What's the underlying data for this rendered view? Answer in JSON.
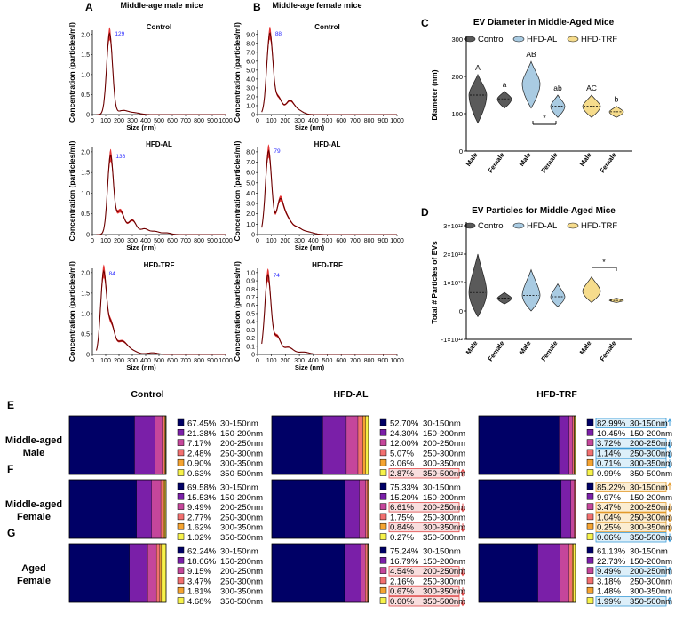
{
  "figure": {
    "panel_letters": [
      "A",
      "B",
      "C",
      "D",
      "E",
      "F",
      "G"
    ],
    "nta": {
      "A_title": "Middle-age male mice",
      "B_title": "Middle-age female mice",
      "ylabel": "Concentration (particles/ml)",
      "xlabel": "Size (nm)",
      "xticks": [
        "0",
        "100",
        "200",
        "300",
        "400",
        "500",
        "600",
        "700",
        "800",
        "900",
        "1000"
      ],
      "A_panels": [
        {
          "label": "Control",
          "peak": "129",
          "yticks": [
            "0",
            "0.5",
            "1.0",
            "1.5",
            "2.0"
          ]
        },
        {
          "label": "HFD-AL",
          "peak": "136",
          "yticks": [
            "0",
            "0.5",
            "1.0",
            "1.5",
            "2.0"
          ]
        },
        {
          "label": "HFD-TRF",
          "peak": "84",
          "yticks": [
            "0",
            "0.5",
            "1.0",
            "1.5",
            "2.0"
          ]
        }
      ],
      "B_panels": [
        {
          "label": "Control",
          "peak": "88",
          "yticks": [
            "0",
            "1.0",
            "2.0",
            "3.0",
            "4.0",
            "5.0",
            "6.0",
            "7.0",
            "8.0",
            "9.0"
          ]
        },
        {
          "label": "HFD-AL",
          "peak": "79",
          "yticks": [
            "0",
            "1.0",
            "2.0",
            "3.0",
            "4.0",
            "5.0",
            "6.0",
            "7.0",
            "8.0"
          ]
        },
        {
          "label": "HFD-TRF",
          "peak": "74",
          "yticks": [
            "0",
            "0.1",
            "0.2",
            "0.3",
            "0.4",
            "0.5",
            "0.6",
            "0.7",
            "0.8",
            "0.9",
            "1.0"
          ]
        }
      ]
    },
    "legend": {
      "control": "Control",
      "hfdal": "HFD-AL",
      "hfdtrf": "HFD-TRF"
    },
    "categories": [
      "Male",
      "Female",
      "Male",
      "Female",
      "Male",
      "Female"
    ],
    "colors": {
      "control": "#5a5a5a",
      "hfdal": "#a9cbe2",
      "hfdtrf": "#f6dc8c",
      "curve": "#6b0000",
      "curve_band": "#e01010"
    },
    "stack": {
      "column_titles": [
        "Control",
        "HFD-AL",
        "HFD-TRF"
      ],
      "row_labels": [
        [
          "Middle-aged",
          "Male"
        ],
        [
          "Middle-aged",
          "Female"
        ],
        [
          "Aged",
          "Female"
        ]
      ],
      "row_letters": [
        "E",
        "F",
        "G"
      ],
      "bin_labels": [
        "30-150nm",
        "150-200nm",
        "200-250nm",
        "250-300nm",
        "300-350nm",
        "350-500nm"
      ],
      "bin_colors": [
        "#000066",
        "#7a1fa8",
        "#c5469b",
        "#f27070",
        "#f5a431",
        "#f7f24a"
      ]
    }
  },
  "chart_data": [
    {
      "type": "violin",
      "panel": "C",
      "title": "EV Diameter in Middle-Aged Mice",
      "ylabel": "Diameter (nm)",
      "yticks": [
        "0",
        "100",
        "200",
        "300"
      ],
      "ylim": [
        0,
        300
      ],
      "series": [
        {
          "name": "Control",
          "sex": "Male",
          "median": 150,
          "min": 75,
          "max": 205,
          "letter": "A"
        },
        {
          "name": "Control",
          "sex": "Female",
          "median": 140,
          "min": 115,
          "max": 160,
          "letter": "a"
        },
        {
          "name": "HFD-AL",
          "sex": "Male",
          "median": 180,
          "min": 115,
          "max": 240,
          "letter": "AB"
        },
        {
          "name": "HFD-AL",
          "sex": "Female",
          "median": 120,
          "min": 90,
          "max": 150,
          "letter": "ab"
        },
        {
          "name": "HFD-TRF",
          "sex": "Male",
          "median": 120,
          "min": 90,
          "max": 150,
          "letter": "AC"
        },
        {
          "name": "HFD-TRF",
          "sex": "Female",
          "median": 105,
          "min": 90,
          "max": 120,
          "letter": "b"
        }
      ],
      "significance": [
        {
          "between": "HFD-AL Male vs HFD-AL Female",
          "mark": "*"
        }
      ]
    },
    {
      "type": "violin",
      "panel": "D",
      "title": "EV Particles for Middle-Aged Mice",
      "ylabel": "Total # Particles of EVs",
      "yticks": [
        "-1×10¹²",
        "0",
        "1×10¹²",
        "2×10¹²",
        "3×10¹²"
      ],
      "ylim": [
        -1,
        3
      ],
      "yunit": "×10¹²",
      "series": [
        {
          "name": "Control",
          "sex": "Male",
          "median": 0.65,
          "min": -0.2,
          "max": 2.0
        },
        {
          "name": "Control",
          "sex": "Female",
          "median": 0.45,
          "min": 0.25,
          "max": 0.65
        },
        {
          "name": "HFD-AL",
          "sex": "Male",
          "median": 0.55,
          "min": 0.0,
          "max": 1.45
        },
        {
          "name": "HFD-AL",
          "sex": "Female",
          "median": 0.5,
          "min": 0.15,
          "max": 0.95
        },
        {
          "name": "HFD-TRF",
          "sex": "Male",
          "median": 0.7,
          "min": 0.3,
          "max": 1.2
        },
        {
          "name": "HFD-TRF",
          "sex": "Female",
          "median": 0.37,
          "min": 0.3,
          "max": 0.45
        }
      ],
      "significance": [
        {
          "between": "HFD-TRF Male vs HFD-TRF Female",
          "mark": "*"
        }
      ]
    },
    {
      "type": "stacked-bar",
      "panels": "E-G",
      "unit": "%",
      "rows": [
        {
          "row": "Middle-aged Male",
          "groups": [
            {
              "group": "Control",
              "values": [
                "67.45%",
                "21.38%",
                "7.17%",
                "2.48%",
                "0.90%",
                "0.63%"
              ],
              "flags": [
                "",
                "",
                "",
                "",
                "",
                ""
              ]
            },
            {
              "group": "HFD-AL",
              "values": [
                "52.70%",
                "24.30%",
                "12.00%",
                "5.07%",
                "3.06%",
                "2.87%"
              ],
              "flags": [
                "",
                "",
                "",
                "",
                "",
                "red-up"
              ]
            },
            {
              "group": "HFD-TRF",
              "values": [
                "82.99%",
                "10.45%",
                "3.72%",
                "1.14%",
                "0.71%",
                "0.99%"
              ],
              "flags": [
                "blue-up",
                "",
                "blue-down",
                "blue-down",
                "blue-down",
                ""
              ]
            }
          ]
        },
        {
          "row": "Middle-aged Female",
          "groups": [
            {
              "group": "Control",
              "values": [
                "69.58%",
                "15.53%",
                "9.49%",
                "2.77%",
                "1.62%",
                "1.02%"
              ],
              "flags": [
                "",
                "",
                "",
                "",
                "",
                ""
              ]
            },
            {
              "group": "HFD-AL",
              "values": [
                "75.33%",
                "15.20%",
                "6.61%",
                "1.75%",
                "0.84%",
                "0.27%"
              ],
              "flags": [
                "",
                "",
                "red-down",
                "",
                "red-down",
                ""
              ]
            },
            {
              "group": "HFD-TRF",
              "values": [
                "85.22%",
                "9.97%",
                "3.47%",
                "1.04%",
                "0.25%",
                "0.06%"
              ],
              "flags": [
                "orange-up",
                "",
                "orange-down",
                "orange-down",
                "orange-down",
                "blue-down"
              ]
            }
          ]
        },
        {
          "row": "Aged Female",
          "groups": [
            {
              "group": "Control",
              "values": [
                "62.24%",
                "18.66%",
                "9.15%",
                "3.47%",
                "1.81%",
                "4.68%"
              ],
              "flags": [
                "",
                "",
                "",
                "",
                "",
                ""
              ]
            },
            {
              "group": "HFD-AL",
              "values": [
                "75.24%",
                "16.79%",
                "4.54%",
                "2.16%",
                "0.67%",
                "0.60%"
              ],
              "flags": [
                "",
                "",
                "red-down",
                "",
                "red-down",
                "red-down"
              ]
            },
            {
              "group": "HFD-TRF",
              "values": [
                "61.13%",
                "22.73%",
                "9.49%",
                "3.18%",
                "1.48%",
                "1.99%"
              ],
              "flags": [
                "",
                "",
                "blue-up",
                "",
                "",
                "blue-up"
              ]
            }
          ]
        }
      ]
    }
  ]
}
